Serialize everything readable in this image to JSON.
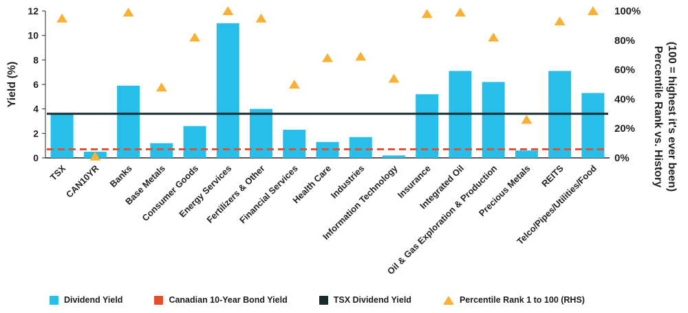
{
  "chart_data": {
    "type": "bar",
    "categories": [
      "TSX",
      "CAN10YR",
      "Banks",
      "Base Metals",
      "Consumer Goods",
      "Energy Services",
      "Fertilizers & Other",
      "Financial Services",
      "Health Care",
      "Industries",
      "Information Technology",
      "Insurance",
      "Integrated Oil",
      "Oil & Gas Exploration & Production",
      "Precious Metals",
      "REITS",
      "Telco/Pipes/Utilities/Food"
    ],
    "series": [
      {
        "name": "Dividend Yield",
        "type": "bar",
        "axis": "left",
        "color": "#27BEE9",
        "values": [
          3.6,
          0.5,
          5.9,
          1.2,
          2.6,
          11.0,
          4.0,
          2.3,
          1.3,
          1.7,
          0.2,
          5.2,
          7.1,
          6.2,
          0.6,
          7.1,
          5.3
        ]
      },
      {
        "name": "Percentile Rank 1 to 100 (RHS)",
        "type": "triangle-marker",
        "axis": "right",
        "color": "#F8B133",
        "values": [
          95,
          1,
          99,
          48,
          82,
          100,
          95,
          50,
          68,
          69,
          54,
          98,
          99,
          82,
          26,
          93,
          100
        ]
      }
    ],
    "reference_lines": [
      {
        "name": "Canadian 10-Year Bond Yield",
        "axis": "left",
        "value": 0.7,
        "style": "dashed",
        "color": "#E4502B"
      },
      {
        "name": "TSX Dividend Yield",
        "axis": "left",
        "value": 3.6,
        "style": "solid",
        "color": "#182B2E"
      }
    ],
    "left_axis": {
      "label": "Yield (%)",
      "min": 0,
      "max": 12,
      "ticks": [
        0,
        2,
        4,
        6,
        8,
        10,
        12
      ]
    },
    "right_axis": {
      "label": "Percentile Rank vs. History",
      "sublabel": "(100 = highest it's ever been)",
      "min": 0,
      "max": 100,
      "ticks": [
        "0%",
        "20%",
        "40%",
        "60%",
        "80%",
        "100%"
      ]
    },
    "grid": false,
    "legend_position": "bottom"
  },
  "legend": {
    "items": [
      {
        "label": "Dividend Yield",
        "swatch": "square",
        "color": "#27BEE9"
      },
      {
        "label": "Canadian 10-Year Bond Yield",
        "swatch": "square",
        "color": "#E4502B"
      },
      {
        "label": "TSX Dividend Yield",
        "swatch": "square",
        "color": "#182B2E"
      },
      {
        "label": "Percentile Rank 1 to 100 (RHS)",
        "swatch": "triangle",
        "color": "#F8B133"
      }
    ]
  }
}
